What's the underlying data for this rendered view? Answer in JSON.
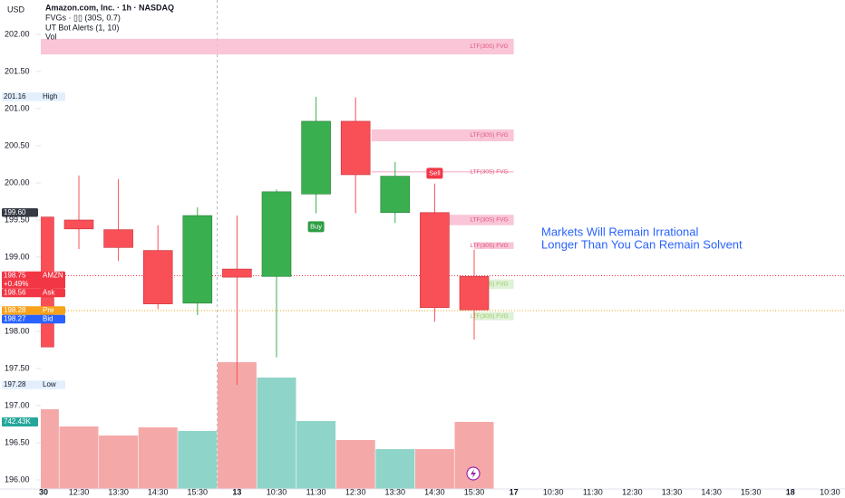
{
  "header": {
    "currency": "USD",
    "symbol": "Amazon.com, Inc. · 1h · NASDAQ",
    "indicators": [
      "FVGs · ▯▯ (30S, 0.7)",
      "UT Bot Alerts (1, 10)",
      "Vol"
    ]
  },
  "chart_data": {
    "type": "candlestick",
    "categories": [
      "30",
      "12:30",
      "13:30",
      "14:30",
      "15:30",
      "13",
      "10:30",
      "11:30",
      "12:30",
      "13:30",
      "14:30",
      "15:30",
      "17",
      "10:30",
      "11:30",
      "12:30",
      "13:30",
      "14:30",
      "15:30",
      "18",
      "10:30"
    ],
    "open": [
      199.54,
      199.5,
      199.37,
      199.09,
      198.38,
      198.84,
      198.74,
      199.85,
      200.83,
      199.6,
      199.6,
      198.74,
      null,
      null,
      null,
      null,
      null,
      null,
      null,
      null,
      null
    ],
    "high": [
      199.55,
      200.1,
      200.05,
      199.43,
      199.67,
      199.56,
      199.91,
      201.16,
      201.15,
      200.28,
      199.99,
      199.1,
      null,
      null,
      null,
      null,
      null,
      null,
      null,
      null,
      null
    ],
    "low": [
      197.79,
      199.11,
      198.95,
      198.3,
      198.22,
      197.28,
      197.65,
      199.59,
      199.59,
      199.46,
      198.13,
      197.89,
      null,
      null,
      null,
      null,
      null,
      null,
      null,
      null,
      null
    ],
    "close": [
      197.79,
      199.38,
      199.13,
      198.37,
      199.56,
      198.73,
      199.88,
      200.83,
      200.11,
      200.09,
      198.32,
      198.29,
      null,
      null,
      null,
      null,
      null,
      null,
      null,
      null,
      null
    ],
    "volume": [
      883000,
      692000,
      592000,
      682000,
      642000,
      1404000,
      1234000,
      752000,
      542000,
      441000,
      441000,
      742430,
      null,
      null,
      null,
      null,
      null,
      null,
      null,
      null,
      null
    ],
    "volume_value_labels": [
      null,
      null,
      null,
      null,
      null,
      null,
      null,
      null,
      null,
      null,
      null,
      "742.43K",
      null,
      null,
      null,
      null,
      null,
      null,
      null,
      null,
      null
    ],
    "up_color": "#3aaf4f",
    "down_color": "#f94f56",
    "up_volume_color": "#8fd4c8",
    "down_volume_color": "#f5a8a8",
    "ylim": [
      195.878,
      202.463
    ],
    "vlim": [
      0,
      5416000
    ],
    "yticks": [
      {
        "value": 202,
        "label": "202.00"
      },
      {
        "value": 201.5,
        "label": "201.50"
      },
      {
        "value": 201,
        "label": "201.00"
      },
      {
        "value": 200.5,
        "label": "200.50"
      },
      {
        "value": 200,
        "label": "200.00"
      },
      {
        "value": 199.5,
        "label": "199.50"
      },
      {
        "value": 199,
        "label": "199.00"
      },
      {
        "value": 198.5,
        "label": "198.50"
      },
      {
        "value": 198,
        "label": "198.00"
      },
      {
        "value": 197.5,
        "label": "197.50"
      },
      {
        "value": 197,
        "label": "197.00"
      },
      {
        "value": 196.5,
        "label": "196.50"
      },
      {
        "value": 196,
        "label": "196.00"
      }
    ],
    "session_breaks": [
      4.5
    ],
    "fvg_zones": [
      {
        "top": 201.94,
        "bottom": 201.73,
        "start": -0.1,
        "end": 12,
        "label": "LTF(30S) FVG",
        "color": "#f8bbd0",
        "label_color": "#e0557a"
      },
      {
        "top": 200.72,
        "bottom": 200.56,
        "start": 8.4,
        "end": 12,
        "label": "LTF(30S) FVG",
        "color": "#f8bbd0",
        "label_color": "#e0557a"
      },
      {
        "top": 200.16,
        "bottom": 200.14,
        "start": 8.4,
        "end": 12,
        "label": "LTF(30S) FVG",
        "color": "#f8bbd0",
        "label_color": "#e0557a"
      },
      {
        "top": 199.57,
        "bottom": 199.43,
        "start": 10,
        "end": 12,
        "label": "LTF(30S) FVG",
        "color": "#f8bbd0",
        "label_color": "#e0557a"
      },
      {
        "top": 199.2,
        "bottom": 199.11,
        "start": 11,
        "end": 12,
        "label": "LTF(30S) FVG",
        "color": "#f8bbd0",
        "label_color": "#e0557a"
      },
      {
        "top": 198.7,
        "bottom": 198.57,
        "start": 11,
        "end": 12,
        "label": "LTF(30S) FVG",
        "color": "#d9efd0",
        "label_color": "#9ccc65"
      },
      {
        "top": 198.26,
        "bottom": 198.15,
        "start": 11,
        "end": 12,
        "label": "LTF(30S) FVG",
        "color": "#d9efd0",
        "label_color": "#9ccc65"
      }
    ],
    "signals": [
      {
        "label": "Buy",
        "index": 7,
        "value": 199.41,
        "color": "#2e9e44"
      },
      {
        "label": "Sell",
        "index": 10,
        "value": 200.13,
        "color": "#f23645"
      }
    ],
    "price_tags": [
      {
        "value": 201.16,
        "label": "201.16",
        "text": "High",
        "bg": "#e3effd",
        "fg": "#131722"
      },
      {
        "value": 199.6,
        "label": "199.60",
        "bg": "#363a45",
        "fg": "#ffffff"
      },
      {
        "value": 198.75,
        "label": "198.75",
        "text": "AMZN",
        "sub": "+0.49%",
        "bg": "#f23645",
        "fg": "#ffffff",
        "line": true
      },
      {
        "value": 198.56,
        "label": "198.56",
        "text": "Ask",
        "bg": "#f23645",
        "fg": "#ffffff"
      },
      {
        "value": 198.28,
        "label": "198.28",
        "text": "Pre",
        "bg": "#f7a21b",
        "fg": "#ffffff",
        "line": true
      },
      {
        "value": 198.27,
        "label": "198.27",
        "text": "Bid",
        "bg": "#2962ff",
        "fg": "#ffffff"
      },
      {
        "value": 197.28,
        "label": "197.28",
        "text": "Low",
        "bg": "#e3effd",
        "fg": "#131722"
      }
    ],
    "annotation": [
      "Markets Will Remain Irrational",
      "Longer Than You Can Remain Solvent"
    ],
    "annotation_color": "#2962ff"
  }
}
